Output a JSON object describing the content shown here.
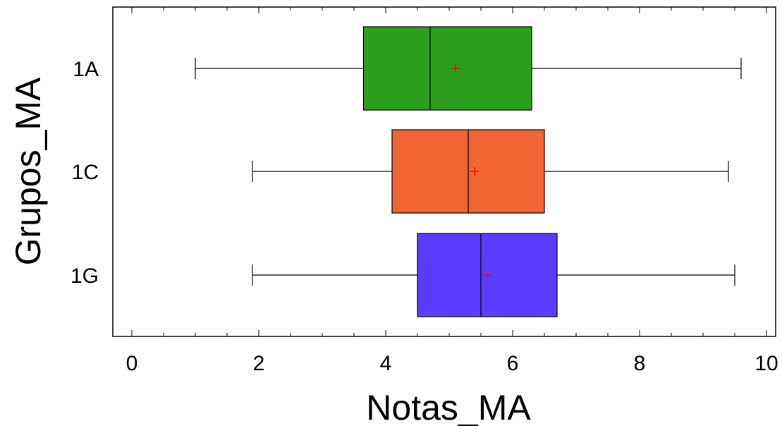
{
  "chart_data": {
    "type": "boxplot",
    "orientation": "horizontal",
    "xlabel": "Notas_MA",
    "ylabel": "Grupos_MA",
    "xlim": [
      0,
      10
    ],
    "x_ticks": [
      "0",
      "2",
      "4",
      "6",
      "8",
      "10"
    ],
    "grid": false,
    "categories": [
      "1A",
      "1C",
      "1G"
    ],
    "series": [
      {
        "category": "1A",
        "min": 1.0,
        "q1": 3.65,
        "median": 4.7,
        "mean": 5.1,
        "q3": 6.3,
        "max": 9.6,
        "color": "#2ca01c"
      },
      {
        "category": "1C",
        "min": 1.9,
        "q1": 4.1,
        "median": 5.3,
        "mean": 5.4,
        "q3": 6.5,
        "max": 9.4,
        "color": "#f06632"
      },
      {
        "category": "1G",
        "min": 1.9,
        "q1": 4.5,
        "median": 5.5,
        "mean": 5.6,
        "q3": 6.7,
        "max": 9.5,
        "color": "#5a3cff"
      }
    ],
    "mean_marker_color": "#ff0000"
  }
}
